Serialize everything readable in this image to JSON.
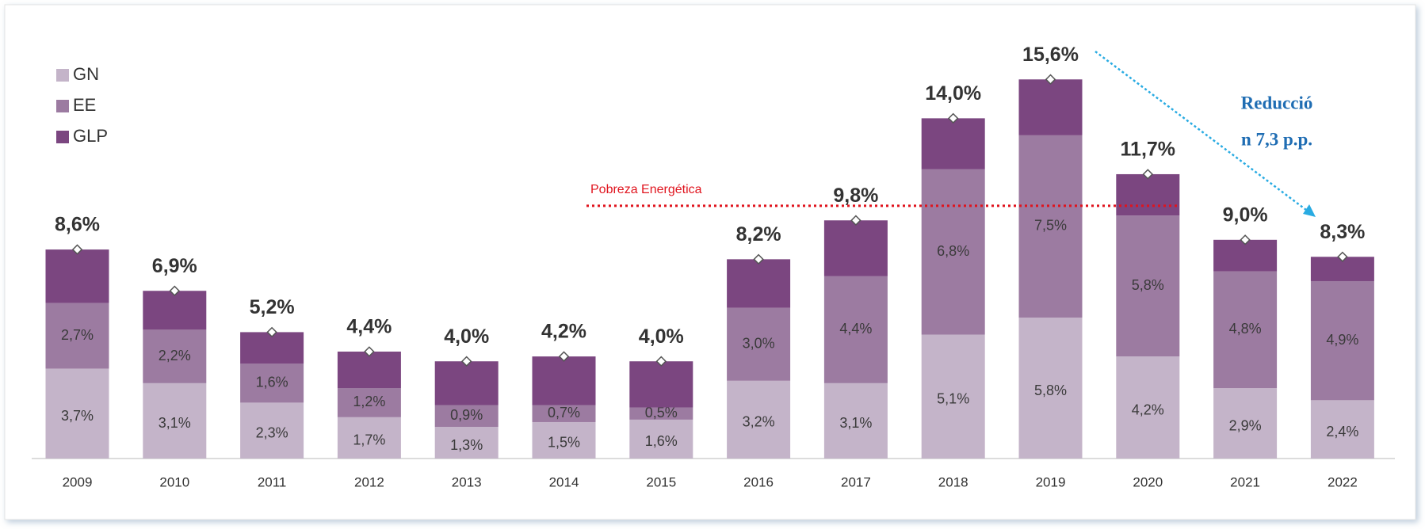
{
  "chart_data": {
    "type": "stacked_bar",
    "categories": [
      "2009",
      "2010",
      "2011",
      "2012",
      "2013",
      "2014",
      "2015",
      "2016",
      "2017",
      "2018",
      "2019",
      "2020",
      "2021",
      "2022"
    ],
    "series": [
      {
        "name": "GN",
        "color": "#c4b4c9",
        "values": [
          3.7,
          3.1,
          2.3,
          1.7,
          1.3,
          1.5,
          1.6,
          3.2,
          3.1,
          5.1,
          5.8,
          4.2,
          2.9,
          2.4
        ],
        "value_labels": [
          "3,7%",
          "3,1%",
          "2,3%",
          "1,7%",
          "1,3%",
          "1,5%",
          "1,6%",
          "3,2%",
          "3,1%",
          "5,1%",
          "5,8%",
          "4,2%",
          "2,9%",
          "2,4%"
        ]
      },
      {
        "name": "EE",
        "color": "#9c7ba1",
        "values": [
          2.7,
          2.2,
          1.6,
          1.2,
          0.9,
          0.7,
          0.5,
          3.0,
          4.4,
          6.8,
          7.5,
          5.8,
          4.8,
          4.9
        ],
        "value_labels": [
          "2,7%",
          "2,2%",
          "1,6%",
          "1,2%",
          "0,9%",
          "0,7%",
          "0,5%",
          "3,0%",
          "4,4%",
          "6,8%",
          "7,5%",
          "5,8%",
          "4,8%",
          "4,9%"
        ]
      },
      {
        "name": "GLP",
        "color": "#7b4680",
        "values": [
          2.2,
          1.6,
          1.3,
          1.5,
          1.8,
          2.0,
          1.9,
          2.0,
          2.3,
          2.1,
          2.3,
          1.7,
          1.3,
          1.0
        ]
      }
    ],
    "totals": [
      8.6,
      6.9,
      5.2,
      4.4,
      4.0,
      4.2,
      4.0,
      8.2,
      9.8,
      14.0,
      15.6,
      11.7,
      9.0,
      8.3
    ],
    "total_labels": [
      "8,6%",
      "6,9%",
      "5,2%",
      "4,4%",
      "4,0%",
      "4,2%",
      "4,0%",
      "8,2%",
      "9,8%",
      "14,0%",
      "15,6%",
      "11,7%",
      "9,0%",
      "8,3%"
    ],
    "threshold": {
      "label": "Pobreza Energética",
      "value": 10.4,
      "color": "#e0141e"
    },
    "annotation": {
      "lines": [
        "Reducció",
        "n 7,3 p.p."
      ],
      "color": "#1f6db3",
      "arrow_color": "#29abe2"
    },
    "ylim": [
      0,
      16
    ],
    "legend": "top-left"
  }
}
